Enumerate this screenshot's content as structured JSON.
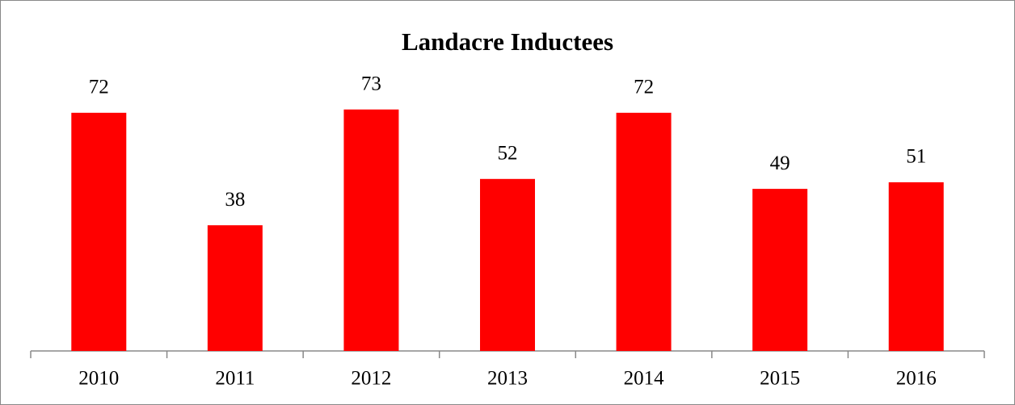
{
  "chart_data": {
    "type": "bar",
    "title": "Landacre Inductees",
    "categories": [
      "2010",
      "2011",
      "2012",
      "2013",
      "2014",
      "2015",
      "2016"
    ],
    "values": [
      72,
      38,
      73,
      52,
      72,
      49,
      51
    ],
    "color": "#ff0000"
  }
}
